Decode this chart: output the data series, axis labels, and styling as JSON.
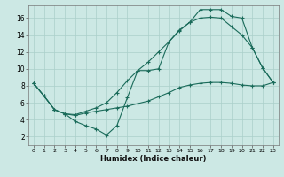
{
  "xlabel": "Humidex (Indice chaleur)",
  "background_color": "#cce8e4",
  "grid_color": "#aacfca",
  "line_color": "#1a6b5a",
  "xlim": [
    -0.5,
    23.5
  ],
  "ylim": [
    1.0,
    17.5
  ],
  "xticks": [
    0,
    1,
    2,
    3,
    4,
    5,
    6,
    7,
    8,
    9,
    10,
    11,
    12,
    13,
    14,
    15,
    16,
    17,
    18,
    19,
    20,
    21,
    22,
    23
  ],
  "yticks": [
    2,
    4,
    6,
    8,
    10,
    12,
    14,
    16
  ],
  "line1_x": [
    0,
    1,
    2,
    3,
    4,
    5,
    6,
    7,
    8,
    9,
    10,
    11,
    12,
    13,
    14,
    15,
    16,
    17,
    18,
    19,
    20,
    21,
    22,
    23
  ],
  "line1_y": [
    8.3,
    6.8,
    5.2,
    4.7,
    4.6,
    5.0,
    5.4,
    6.0,
    7.2,
    8.6,
    9.8,
    10.8,
    12.0,
    13.2,
    14.5,
    15.5,
    16.0,
    16.1,
    16.0,
    15.0,
    14.0,
    12.5,
    10.1,
    8.4
  ],
  "line2_x": [
    0,
    1,
    2,
    3,
    4,
    5,
    6,
    7,
    8,
    9,
    10,
    11,
    12,
    13,
    14,
    15,
    16,
    17,
    18,
    19,
    20,
    21,
    22,
    23
  ],
  "line2_y": [
    8.3,
    6.8,
    5.2,
    4.7,
    3.8,
    3.3,
    2.9,
    2.2,
    3.3,
    6.6,
    9.8,
    9.8,
    10.0,
    13.2,
    14.6,
    15.5,
    17.0,
    17.0,
    17.0,
    16.2,
    16.0,
    12.5,
    10.1,
    8.4
  ],
  "line3_x": [
    0,
    1,
    2,
    3,
    4,
    5,
    6,
    7,
    8,
    9,
    10,
    11,
    12,
    13,
    14,
    15,
    16,
    17,
    18,
    19,
    20,
    21,
    22,
    23
  ],
  "line3_y": [
    8.3,
    6.8,
    5.2,
    4.7,
    4.5,
    4.8,
    5.0,
    5.2,
    5.4,
    5.6,
    5.9,
    6.2,
    6.7,
    7.2,
    7.8,
    8.1,
    8.3,
    8.4,
    8.4,
    8.3,
    8.1,
    8.0,
    8.0,
    8.4
  ]
}
